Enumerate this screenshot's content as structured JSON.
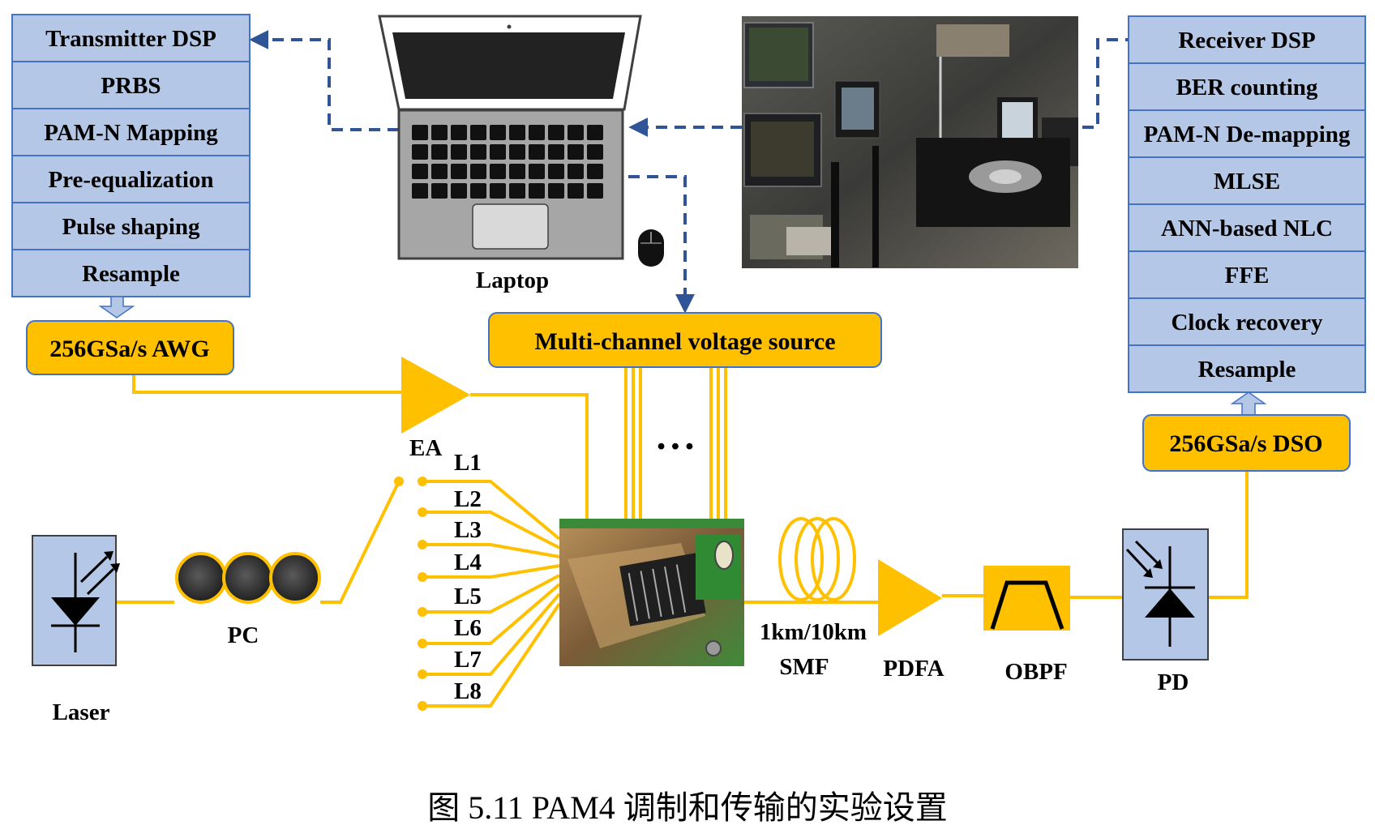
{
  "colors": {
    "fiber": "#ffc000",
    "dsp_fill": "#b4c7e7",
    "dsp_border": "#4472c4",
    "dashed_link": "#2f5597",
    "orange_box": "#ffc000"
  },
  "transmitter_dsp": [
    "Transmitter DSP",
    "PRBS",
    "PAM-N Mapping",
    "Pre-equalization",
    "Pulse shaping",
    "Resample"
  ],
  "receiver_dsp": [
    "Receiver DSP",
    "BER counting",
    "PAM-N De-mapping",
    "MLSE",
    "ANN-based NLC",
    "FFE",
    "Clock recovery",
    "Resample"
  ],
  "boxes": {
    "awg": "256GSa/s AWG",
    "dso": "256GSa/s DSO",
    "voltage_source": "Multi-channel voltage source"
  },
  "labels": {
    "laptop": "Laptop",
    "ea": "EA",
    "laser": "Laser",
    "pc": "PC",
    "smf_length": "1km/10km",
    "smf": "SMF",
    "pdfa": "PDFA",
    "obpf": "OBPF",
    "pd": "PD",
    "ellipsis": "• • •"
  },
  "lanes": [
    "L1",
    "L2",
    "L3",
    "L4",
    "L5",
    "L6",
    "L7",
    "L8"
  ],
  "icons": {
    "laptop": "laptop-icon",
    "mouse": "mouse-icon",
    "lab_photo": "lab-photo",
    "chip_photo": "chip-photo",
    "laser": "laser-diode-icon",
    "pc": "polarization-controller-icon",
    "smf": "fiber-coil-icon",
    "pdfa": "amplifier-icon",
    "obpf": "bandpass-filter-icon",
    "pd": "photodiode-icon"
  },
  "caption": "图 5.11 PAM4 调制和传输的实验设置"
}
